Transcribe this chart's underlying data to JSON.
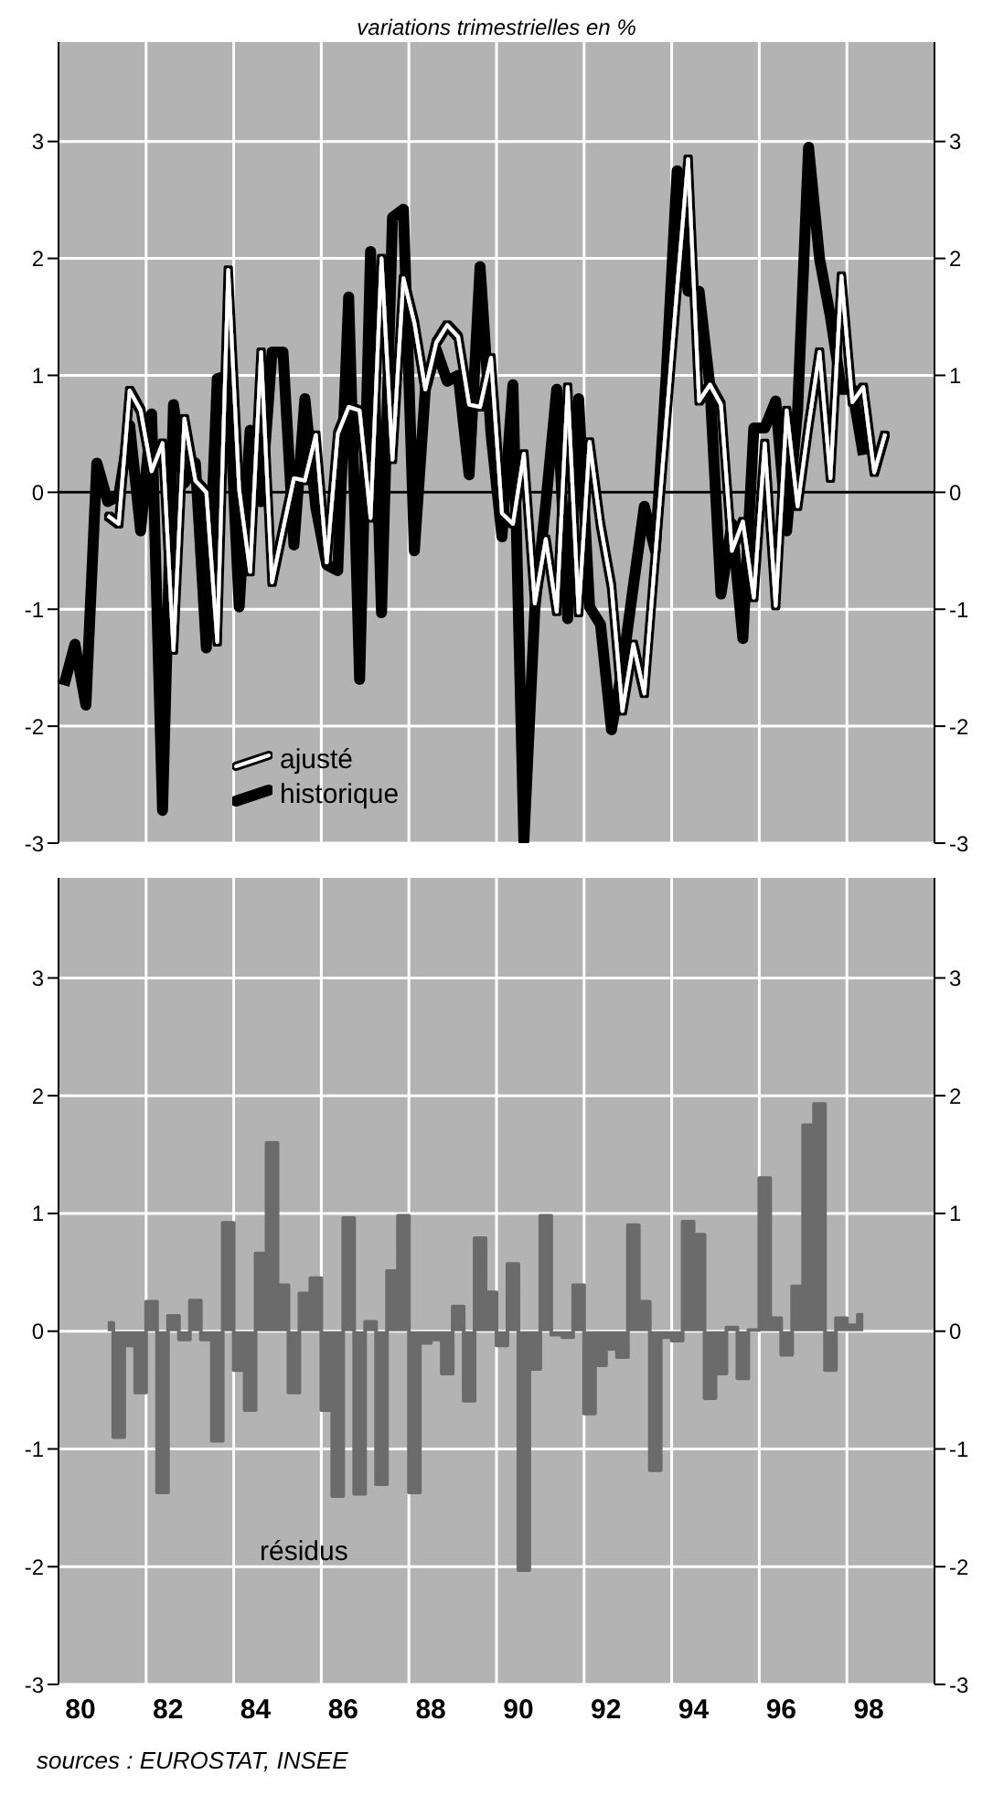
{
  "chart_data": [
    {
      "type": "line",
      "title": "variations trimestrielles en %",
      "x": [
        80.125,
        80.375,
        80.625,
        80.875,
        81.125,
        81.375,
        81.625,
        81.875,
        82.125,
        82.375,
        82.625,
        82.875,
        83.125,
        83.375,
        83.625,
        83.875,
        84.125,
        84.375,
        84.625,
        84.875,
        85.125,
        85.375,
        85.625,
        85.875,
        86.125,
        86.375,
        86.625,
        86.875,
        87.125,
        87.375,
        87.625,
        87.875,
        88.125,
        88.375,
        88.625,
        88.875,
        89.125,
        89.375,
        89.625,
        89.875,
        90.125,
        90.375,
        90.625,
        90.875,
        91.125,
        91.375,
        91.625,
        91.875,
        92.125,
        92.375,
        92.625,
        92.875,
        93.125,
        93.375,
        93.625,
        93.875,
        94.125,
        94.375,
        94.625,
        94.875,
        95.125,
        95.375,
        95.625,
        95.875,
        96.125,
        96.375,
        96.625,
        96.875,
        97.125,
        97.375,
        97.625,
        97.875,
        98.125,
        98.375,
        98.625,
        98.875
      ],
      "series": [
        {
          "name": "ajusté",
          "color": "#ffffff",
          "values": [
            null,
            null,
            null,
            null,
            -0.2,
            -0.27,
            0.87,
            0.7,
            0.18,
            0.42,
            -1.35,
            0.63,
            0.1,
            0.0,
            -1.28,
            1.9,
            0.02,
            -0.68,
            1.2,
            -0.77,
            -0.32,
            0.12,
            0.1,
            0.49,
            -0.6,
            0.5,
            0.73,
            0.7,
            -0.22,
            2.0,
            0.28,
            1.83,
            1.45,
            0.88,
            1.28,
            1.43,
            1.33,
            0.75,
            0.73,
            1.15,
            -0.18,
            -0.27,
            0.33,
            -0.95,
            -0.4,
            -1.02,
            0.9,
            -1.03,
            0.43,
            -0.28,
            -0.8,
            -1.87,
            -1.3,
            -1.72,
            -0.55,
            0.6,
            1.75,
            2.85,
            0.78,
            0.92,
            0.75,
            -0.5,
            -0.25,
            -0.9,
            0.42,
            -0.97,
            0.7,
            -0.12,
            0.57,
            1.2,
            0.12,
            1.85,
            0.77,
            0.9,
            0.17,
            0.5
          ]
        },
        {
          "name": "historique",
          "color": "#000000",
          "values": [
            -1.65,
            -1.3,
            -1.82,
            0.25,
            -0.08,
            -0.03,
            0.57,
            -0.33,
            0.67,
            -2.72,
            0.75,
            0.08,
            0.25,
            -1.33,
            0.97,
            1.0,
            -0.98,
            0.53,
            -0.08,
            1.2,
            1.2,
            -0.45,
            0.8,
            -0.13,
            -0.62,
            -0.67,
            1.67,
            -1.6,
            2.06,
            -1.03,
            2.35,
            2.42,
            -0.5,
            0.88,
            1.22,
            0.95,
            1.0,
            0.15,
            1.93,
            0.5,
            -0.38,
            0.92,
            -2.98,
            -1.0,
            -0.1,
            0.88,
            -1.08,
            0.8,
            -0.98,
            -1.13,
            -2.03,
            -1.5,
            -0.8,
            -0.12,
            -0.5,
            1.0,
            2.75,
            1.72,
            1.72,
            0.9,
            -0.87,
            -0.27,
            -1.25,
            0.55,
            0.55,
            0.78,
            -0.33,
            0.7,
            2.95,
            2.0,
            1.5,
            0.88,
            0.88,
            0.32,
            null,
            null
          ]
        }
      ],
      "xlim": [
        80,
        100
      ],
      "xticks": [
        {
          "value": 82,
          "label": null
        },
        {
          "value": 84,
          "label": null
        },
        {
          "value": 86,
          "label": null
        },
        {
          "value": 88,
          "label": null
        },
        {
          "value": 90,
          "label": null
        },
        {
          "value": 92,
          "label": null
        },
        {
          "value": 94,
          "label": null
        },
        {
          "value": 96,
          "label": null
        },
        {
          "value": 98,
          "label": null
        }
      ],
      "ylim": [
        -3,
        3.85
      ],
      "yticks": [
        -3,
        -2,
        -1,
        0,
        1,
        2,
        3
      ],
      "y2lim": [
        -3,
        3.85
      ],
      "y2ticks": [
        -3,
        -2,
        -1,
        0,
        1,
        2,
        3
      ],
      "ref_lines": [
        {
          "axis": "y",
          "value": 0,
          "color": "#000000"
        }
      ],
      "grid": true,
      "legend": "bottom left",
      "tick_labels": "y",
      "marker": "none",
      "line_style": "solid"
    },
    {
      "type": "step",
      "x": [
        81.125,
        81.375,
        81.625,
        81.875,
        82.125,
        82.375,
        82.625,
        82.875,
        83.125,
        83.375,
        83.625,
        83.875,
        84.125,
        84.375,
        84.625,
        84.875,
        85.125,
        85.375,
        85.625,
        85.875,
        86.125,
        86.375,
        86.625,
        86.875,
        87.125,
        87.375,
        87.625,
        87.875,
        88.125,
        88.375,
        88.625,
        88.875,
        89.125,
        89.375,
        89.625,
        89.875,
        90.125,
        90.375,
        90.625,
        90.875,
        91.125,
        91.375,
        91.625,
        91.875,
        92.125,
        92.375,
        92.625,
        92.875,
        93.125,
        93.375,
        93.625,
        93.875,
        94.125,
        94.375,
        94.625,
        94.875,
        95.125,
        95.375,
        95.625,
        95.875,
        96.125,
        96.375,
        96.625,
        96.875,
        97.125,
        97.375,
        97.625,
        97.875,
        98.125,
        98.375
      ],
      "series": [
        {
          "name": "résidus",
          "color": "#6b6b6b",
          "values": [
            0.07,
            -0.9,
            -0.12,
            -0.52,
            0.25,
            -1.37,
            0.13,
            -0.07,
            0.26,
            -0.07,
            -0.93,
            0.92,
            -0.33,
            -0.67,
            0.66,
            1.6,
            0.39,
            -0.52,
            0.32,
            0.45,
            -0.67,
            -1.4,
            0.96,
            -1.38,
            0.08,
            -1.3,
            0.51,
            0.98,
            -1.37,
            -0.1,
            -0.07,
            -0.36,
            0.21,
            -0.59,
            0.79,
            0.33,
            -0.12,
            0.57,
            -2.03,
            -0.32,
            0.98,
            -0.03,
            -0.05,
            0.39,
            -0.7,
            -0.29,
            -0.15,
            -0.22,
            0.9,
            0.25,
            -1.18,
            -0.05,
            -0.08,
            0.93,
            0.82,
            -0.57,
            -0.36,
            0.03,
            -0.4,
            0.01,
            1.3,
            0.11,
            -0.2,
            0.38,
            1.75,
            1.93,
            -0.33,
            0.11,
            0.05,
            0.14
          ]
        }
      ],
      "xlim": [
        80,
        100
      ],
      "xticks": [
        {
          "value": 80.5,
          "label": "80"
        },
        {
          "value": 82,
          "label": null
        },
        {
          "value": 82.5,
          "label": "82"
        },
        {
          "value": 84,
          "label": null
        },
        {
          "value": 84.5,
          "label": "84"
        },
        {
          "value": 86,
          "label": null
        },
        {
          "value": 86.5,
          "label": "86"
        },
        {
          "value": 88,
          "label": null
        },
        {
          "value": 88.5,
          "label": "88"
        },
        {
          "value": 90,
          "label": null
        },
        {
          "value": 90.5,
          "label": "90"
        },
        {
          "value": 92,
          "label": null
        },
        {
          "value": 92.5,
          "label": "92"
        },
        {
          "value": 94,
          "label": null
        },
        {
          "value": 94.5,
          "label": "94"
        },
        {
          "value": 96,
          "label": null
        },
        {
          "value": 96.5,
          "label": "96"
        },
        {
          "value": 98,
          "label": null
        },
        {
          "value": 98.5,
          "label": "98"
        }
      ],
      "ylim": [
        -3,
        3.85
      ],
      "yticks": [
        -3,
        -2,
        -1,
        0,
        1,
        2,
        3
      ],
      "y2lim": [
        -3,
        3.85
      ],
      "y2ticks": [
        -3,
        -2,
        -1,
        0,
        1,
        2,
        3
      ],
      "grid": true,
      "annotations": [
        "sources : EUROSTAT, INSEE"
      ]
    }
  ]
}
